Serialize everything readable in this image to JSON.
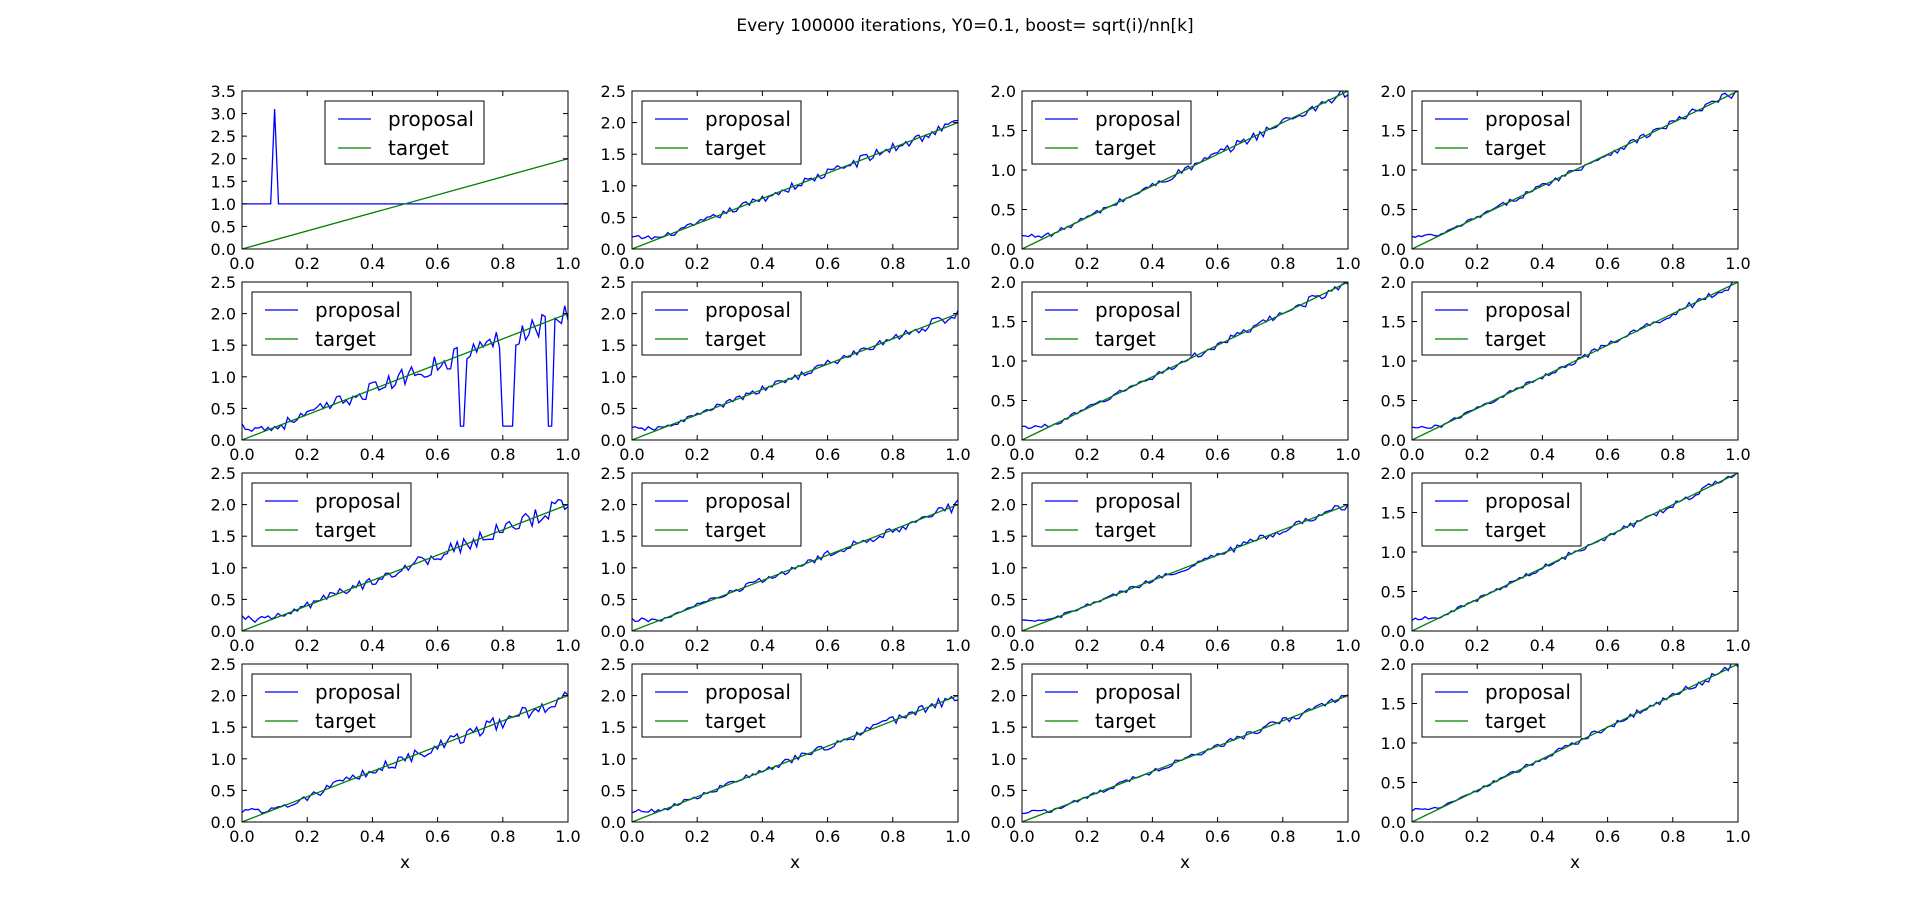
{
  "suptitle": "Every 100000 iterations, Y0=0.1, boost= sqrt(i)/nn[k]",
  "colors": {
    "proposal": "#0000ff",
    "target": "#008000",
    "axes": "#000000",
    "background": "#ffffff"
  },
  "chart_data": [
    {
      "type": "line",
      "row": 0,
      "col": 0,
      "xlabel": "",
      "ylim": [
        0,
        3.5
      ],
      "yticks": [
        0.0,
        0.5,
        1.0,
        1.5,
        2.0,
        2.5,
        3.0,
        3.5
      ],
      "xlim": [
        0,
        1
      ],
      "xticks": [
        0.0,
        0.2,
        0.4,
        0.6,
        0.8,
        1.0
      ],
      "legend": "top-center",
      "series": [
        {
          "name": "proposal",
          "shape": "spike",
          "base": 1.0,
          "spike_at": 0.1,
          "spike_value": 3.1
        },
        {
          "name": "target",
          "x": [
            0,
            1
          ],
          "y": [
            0,
            2
          ]
        }
      ]
    },
    {
      "type": "line",
      "row": 0,
      "col": 1,
      "xlabel": "",
      "ylim": [
        0,
        2.5
      ],
      "yticks": [
        0.0,
        0.5,
        1.0,
        1.5,
        2.0,
        2.5
      ],
      "xlim": [
        0,
        1
      ],
      "xticks": [
        0.0,
        0.2,
        0.4,
        0.6,
        0.8,
        1.0
      ],
      "legend": "upper-left",
      "series": [
        {
          "name": "proposal",
          "shape": "noisy",
          "y0": 0.18,
          "noise": 0.07
        },
        {
          "name": "target",
          "x": [
            0,
            1
          ],
          "y": [
            0,
            2
          ]
        }
      ]
    },
    {
      "type": "line",
      "row": 0,
      "col": 2,
      "xlabel": "",
      "ylim": [
        0,
        2.0
      ],
      "yticks": [
        0.0,
        0.5,
        1.0,
        1.5,
        2.0
      ],
      "xlim": [
        0,
        1
      ],
      "xticks": [
        0.0,
        0.2,
        0.4,
        0.6,
        0.8,
        1.0
      ],
      "legend": "upper-left",
      "series": [
        {
          "name": "proposal",
          "shape": "noisy",
          "y0": 0.16,
          "noise": 0.05
        },
        {
          "name": "target",
          "x": [
            0,
            1
          ],
          "y": [
            0,
            2
          ]
        }
      ]
    },
    {
      "type": "line",
      "row": 0,
      "col": 3,
      "xlabel": "",
      "ylim": [
        0,
        2.0
      ],
      "yticks": [
        0.0,
        0.5,
        1.0,
        1.5,
        2.0
      ],
      "xlim": [
        0,
        1
      ],
      "xticks": [
        0.0,
        0.2,
        0.4,
        0.6,
        0.8,
        1.0
      ],
      "legend": "upper-left",
      "series": [
        {
          "name": "proposal",
          "shape": "noisy",
          "y0": 0.15,
          "noise": 0.04
        },
        {
          "name": "target",
          "x": [
            0,
            1
          ],
          "y": [
            0,
            2
          ]
        }
      ]
    },
    {
      "type": "line",
      "row": 1,
      "col": 0,
      "xlabel": "",
      "ylim": [
        0,
        2.5
      ],
      "yticks": [
        0.0,
        0.5,
        1.0,
        1.5,
        2.0,
        2.5
      ],
      "xlim": [
        0,
        1
      ],
      "xticks": [
        0.0,
        0.2,
        0.4,
        0.6,
        0.8,
        1.0
      ],
      "legend": "upper-left",
      "series": [
        {
          "name": "proposal",
          "shape": "noisy",
          "y0": 0.22,
          "noise": 0.14,
          "dips": [
            [
              0.675,
              0.22
            ],
            [
              0.805,
              0.22
            ],
            [
              0.825,
              0.22
            ],
            [
              0.945,
              0.22
            ]
          ]
        },
        {
          "name": "target",
          "x": [
            0,
            1
          ],
          "y": [
            0,
            2
          ]
        }
      ]
    },
    {
      "type": "line",
      "row": 1,
      "col": 1,
      "xlabel": "",
      "ylim": [
        0,
        2.5
      ],
      "yticks": [
        0.0,
        0.5,
        1.0,
        1.5,
        2.0,
        2.5
      ],
      "xlim": [
        0,
        1
      ],
      "xticks": [
        0.0,
        0.2,
        0.4,
        0.6,
        0.8,
        1.0
      ],
      "legend": "upper-left",
      "series": [
        {
          "name": "proposal",
          "shape": "noisy",
          "y0": 0.18,
          "noise": 0.06
        },
        {
          "name": "target",
          "x": [
            0,
            1
          ],
          "y": [
            0,
            2
          ]
        }
      ]
    },
    {
      "type": "line",
      "row": 1,
      "col": 2,
      "xlabel": "",
      "ylim": [
        0,
        2.0
      ],
      "yticks": [
        0.0,
        0.5,
        1.0,
        1.5,
        2.0
      ],
      "xlim": [
        0,
        1
      ],
      "xticks": [
        0.0,
        0.2,
        0.4,
        0.6,
        0.8,
        1.0
      ],
      "legend": "upper-left",
      "series": [
        {
          "name": "proposal",
          "shape": "noisy",
          "y0": 0.16,
          "noise": 0.04
        },
        {
          "name": "target",
          "x": [
            0,
            1
          ],
          "y": [
            0,
            2
          ]
        }
      ]
    },
    {
      "type": "line",
      "row": 1,
      "col": 3,
      "xlabel": "",
      "ylim": [
        0,
        2.0
      ],
      "yticks": [
        0.0,
        0.5,
        1.0,
        1.5,
        2.0
      ],
      "xlim": [
        0,
        1
      ],
      "xticks": [
        0.0,
        0.2,
        0.4,
        0.6,
        0.8,
        1.0
      ],
      "legend": "upper-left",
      "series": [
        {
          "name": "proposal",
          "shape": "noisy",
          "y0": 0.15,
          "noise": 0.035
        },
        {
          "name": "target",
          "x": [
            0,
            1
          ],
          "y": [
            0,
            2
          ]
        }
      ]
    },
    {
      "type": "line",
      "row": 2,
      "col": 0,
      "xlabel": "",
      "ylim": [
        0,
        2.5
      ],
      "yticks": [
        0.0,
        0.5,
        1.0,
        1.5,
        2.0,
        2.5
      ],
      "xlim": [
        0,
        1
      ],
      "xticks": [
        0.0,
        0.2,
        0.4,
        0.6,
        0.8,
        1.0
      ],
      "legend": "upper-left",
      "series": [
        {
          "name": "proposal",
          "shape": "noisy",
          "y0": 0.2,
          "noise": 0.1
        },
        {
          "name": "target",
          "x": [
            0,
            1
          ],
          "y": [
            0,
            2
          ]
        }
      ]
    },
    {
      "type": "line",
      "row": 2,
      "col": 1,
      "xlabel": "",
      "ylim": [
        0,
        2.5
      ],
      "yticks": [
        0.0,
        0.5,
        1.0,
        1.5,
        2.0,
        2.5
      ],
      "xlim": [
        0,
        1
      ],
      "xticks": [
        0.0,
        0.2,
        0.4,
        0.6,
        0.8,
        1.0
      ],
      "legend": "upper-left",
      "series": [
        {
          "name": "proposal",
          "shape": "noisy",
          "y0": 0.17,
          "noise": 0.06
        },
        {
          "name": "target",
          "x": [
            0,
            1
          ],
          "y": [
            0,
            2
          ]
        }
      ]
    },
    {
      "type": "line",
      "row": 2,
      "col": 2,
      "xlabel": "",
      "ylim": [
        0,
        2.5
      ],
      "yticks": [
        0.0,
        0.5,
        1.0,
        1.5,
        2.0,
        2.5
      ],
      "xlim": [
        0,
        1
      ],
      "xticks": [
        0.0,
        0.2,
        0.4,
        0.6,
        0.8,
        1.0
      ],
      "legend": "upper-left",
      "series": [
        {
          "name": "proposal",
          "shape": "noisy",
          "y0": 0.15,
          "noise": 0.045
        },
        {
          "name": "target",
          "x": [
            0,
            1
          ],
          "y": [
            0,
            2
          ]
        }
      ]
    },
    {
      "type": "line",
      "row": 2,
      "col": 3,
      "xlabel": "",
      "ylim": [
        0,
        2.0
      ],
      "yticks": [
        0.0,
        0.5,
        1.0,
        1.5,
        2.0
      ],
      "xlim": [
        0,
        1
      ],
      "xticks": [
        0.0,
        0.2,
        0.4,
        0.6,
        0.8,
        1.0
      ],
      "legend": "upper-left",
      "series": [
        {
          "name": "proposal",
          "shape": "noisy",
          "y0": 0.15,
          "noise": 0.035
        },
        {
          "name": "target",
          "x": [
            0,
            1
          ],
          "y": [
            0,
            2
          ]
        }
      ]
    },
    {
      "type": "line",
      "row": 3,
      "col": 0,
      "xlabel": "x",
      "ylim": [
        0,
        2.5
      ],
      "yticks": [
        0.0,
        0.5,
        1.0,
        1.5,
        2.0,
        2.5
      ],
      "xlim": [
        0,
        1
      ],
      "xticks": [
        0.0,
        0.2,
        0.4,
        0.6,
        0.8,
        1.0
      ],
      "legend": "upper-left",
      "series": [
        {
          "name": "proposal",
          "shape": "noisy",
          "y0": 0.19,
          "noise": 0.09
        },
        {
          "name": "target",
          "x": [
            0,
            1
          ],
          "y": [
            0,
            2
          ]
        }
      ]
    },
    {
      "type": "line",
      "row": 3,
      "col": 1,
      "xlabel": "x",
      "ylim": [
        0,
        2.5
      ],
      "yticks": [
        0.0,
        0.5,
        1.0,
        1.5,
        2.0,
        2.5
      ],
      "xlim": [
        0,
        1
      ],
      "xticks": [
        0.0,
        0.2,
        0.4,
        0.6,
        0.8,
        1.0
      ],
      "legend": "upper-left",
      "series": [
        {
          "name": "proposal",
          "shape": "noisy",
          "y0": 0.17,
          "noise": 0.055
        },
        {
          "name": "target",
          "x": [
            0,
            1
          ],
          "y": [
            0,
            2
          ]
        }
      ]
    },
    {
      "type": "line",
      "row": 3,
      "col": 2,
      "xlabel": "x",
      "ylim": [
        0,
        2.5
      ],
      "yticks": [
        0.0,
        0.5,
        1.0,
        1.5,
        2.0,
        2.5
      ],
      "xlim": [
        0,
        1
      ],
      "xticks": [
        0.0,
        0.2,
        0.4,
        0.6,
        0.8,
        1.0
      ],
      "legend": "upper-left",
      "series": [
        {
          "name": "proposal",
          "shape": "noisy",
          "y0": 0.15,
          "noise": 0.045
        },
        {
          "name": "target",
          "x": [
            0,
            1
          ],
          "y": [
            0,
            2
          ]
        }
      ]
    },
    {
      "type": "line",
      "row": 3,
      "col": 3,
      "xlabel": "x",
      "ylim": [
        0,
        2.0
      ],
      "yticks": [
        0.0,
        0.5,
        1.0,
        1.5,
        2.0
      ],
      "xlim": [
        0,
        1
      ],
      "xticks": [
        0.0,
        0.2,
        0.4,
        0.6,
        0.8,
        1.0
      ],
      "legend": "upper-left",
      "series": [
        {
          "name": "proposal",
          "shape": "noisy",
          "y0": 0.15,
          "noise": 0.035
        },
        {
          "name": "target",
          "x": [
            0,
            1
          ],
          "y": [
            0,
            2
          ]
        }
      ]
    }
  ]
}
